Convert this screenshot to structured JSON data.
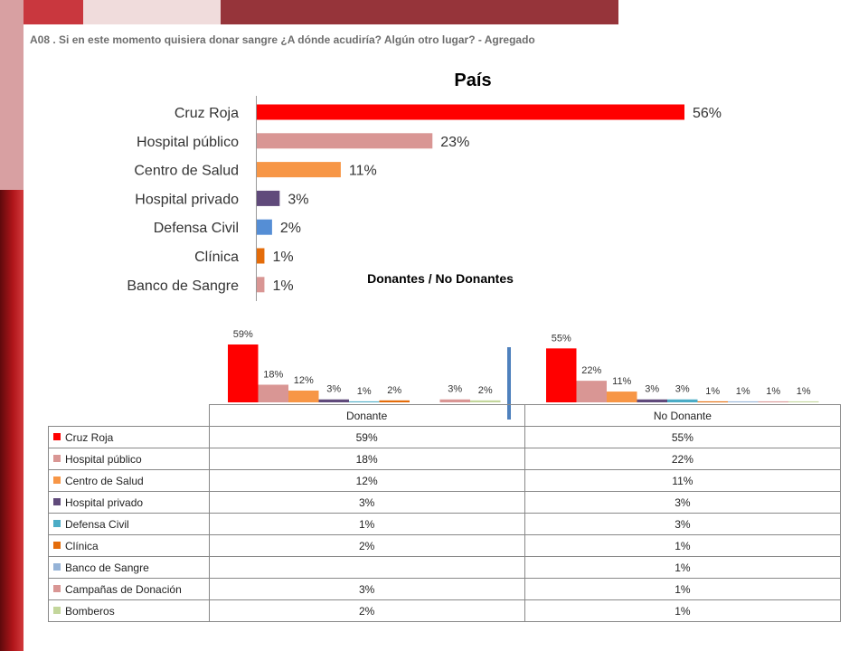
{
  "header": {
    "question": "A08 . Si en este momento quisiera donar sangre ¿A dónde acudiría? Algún otro lugar? - Agregado"
  },
  "colors": {
    "top_bands": [
      "#c9373e",
      "#f0dcdc",
      "#96343a"
    ],
    "series": {
      "cruz_roja": "#ff0000",
      "hospital_publico": "#d99694",
      "centro_salud": "#f79646",
      "hospital_privado": "#604a7b",
      "defensa_civil": "#4bacc6",
      "clinica": "#e46c0a",
      "banco_sangre": "#95b3d7",
      "campanas": "#d99694",
      "bomberos": "#c3d69b"
    },
    "top_chart": [
      "#ff0000",
      "#d99694",
      "#f79646",
      "#604a7b",
      "#558ed5",
      "#e46c0a",
      "#d99694"
    ],
    "separator": "#4f81bd"
  },
  "chart_data": [
    {
      "type": "bar",
      "orientation": "horizontal",
      "title": "País",
      "categories": [
        "Cruz Roja",
        "Hospital público",
        "Centro de Salud",
        "Hospital privado",
        "Defensa Civil",
        "Clínica",
        "Banco de Sangre"
      ],
      "values": [
        56,
        23,
        11,
        3,
        2,
        1,
        1
      ],
      "value_labels": [
        "56%",
        "23%",
        "11%",
        "3%",
        "2%",
        "1%",
        "1%"
      ],
      "xlim": [
        0,
        60
      ],
      "grid": false,
      "legend": "none"
    },
    {
      "type": "bar",
      "title": "Donantes / No Donantes",
      "categories": [
        "Donante",
        "No Donante"
      ],
      "series": [
        {
          "name": "Cruz Roja",
          "key": "cruz_roja",
          "values": [
            59,
            55
          ],
          "labels": [
            "59%",
            "55%"
          ]
        },
        {
          "name": "Hospital público",
          "key": "hospital_publico",
          "values": [
            18,
            22
          ],
          "labels": [
            "18%",
            "22%"
          ]
        },
        {
          "name": "Centro de Salud",
          "key": "centro_salud",
          "values": [
            12,
            11
          ],
          "labels": [
            "12%",
            "11%"
          ]
        },
        {
          "name": "Hospital privado",
          "key": "hospital_privado",
          "values": [
            3,
            3
          ],
          "labels": [
            "3%",
            "3%"
          ]
        },
        {
          "name": "Defensa Civil",
          "key": "defensa_civil",
          "values": [
            1,
            3
          ],
          "labels": [
            "1%",
            "3%"
          ]
        },
        {
          "name": "Clínica",
          "key": "clinica",
          "values": [
            2,
            1
          ],
          "labels": [
            "2%",
            "1%"
          ]
        },
        {
          "name": "Banco de Sangre",
          "key": "banco_sangre",
          "values": [
            null,
            1
          ],
          "labels": [
            "",
            "1%"
          ]
        },
        {
          "name": "Campañas de Donación",
          "key": "campanas",
          "values": [
            3,
            1
          ],
          "labels": [
            "3%",
            "1%"
          ]
        },
        {
          "name": "Bomberos",
          "key": "bomberos",
          "values": [
            2,
            1
          ],
          "labels": [
            "2%",
            "1%"
          ]
        }
      ],
      "ylim": [
        0,
        60
      ],
      "grid": false,
      "legend": "data-table"
    }
  ]
}
